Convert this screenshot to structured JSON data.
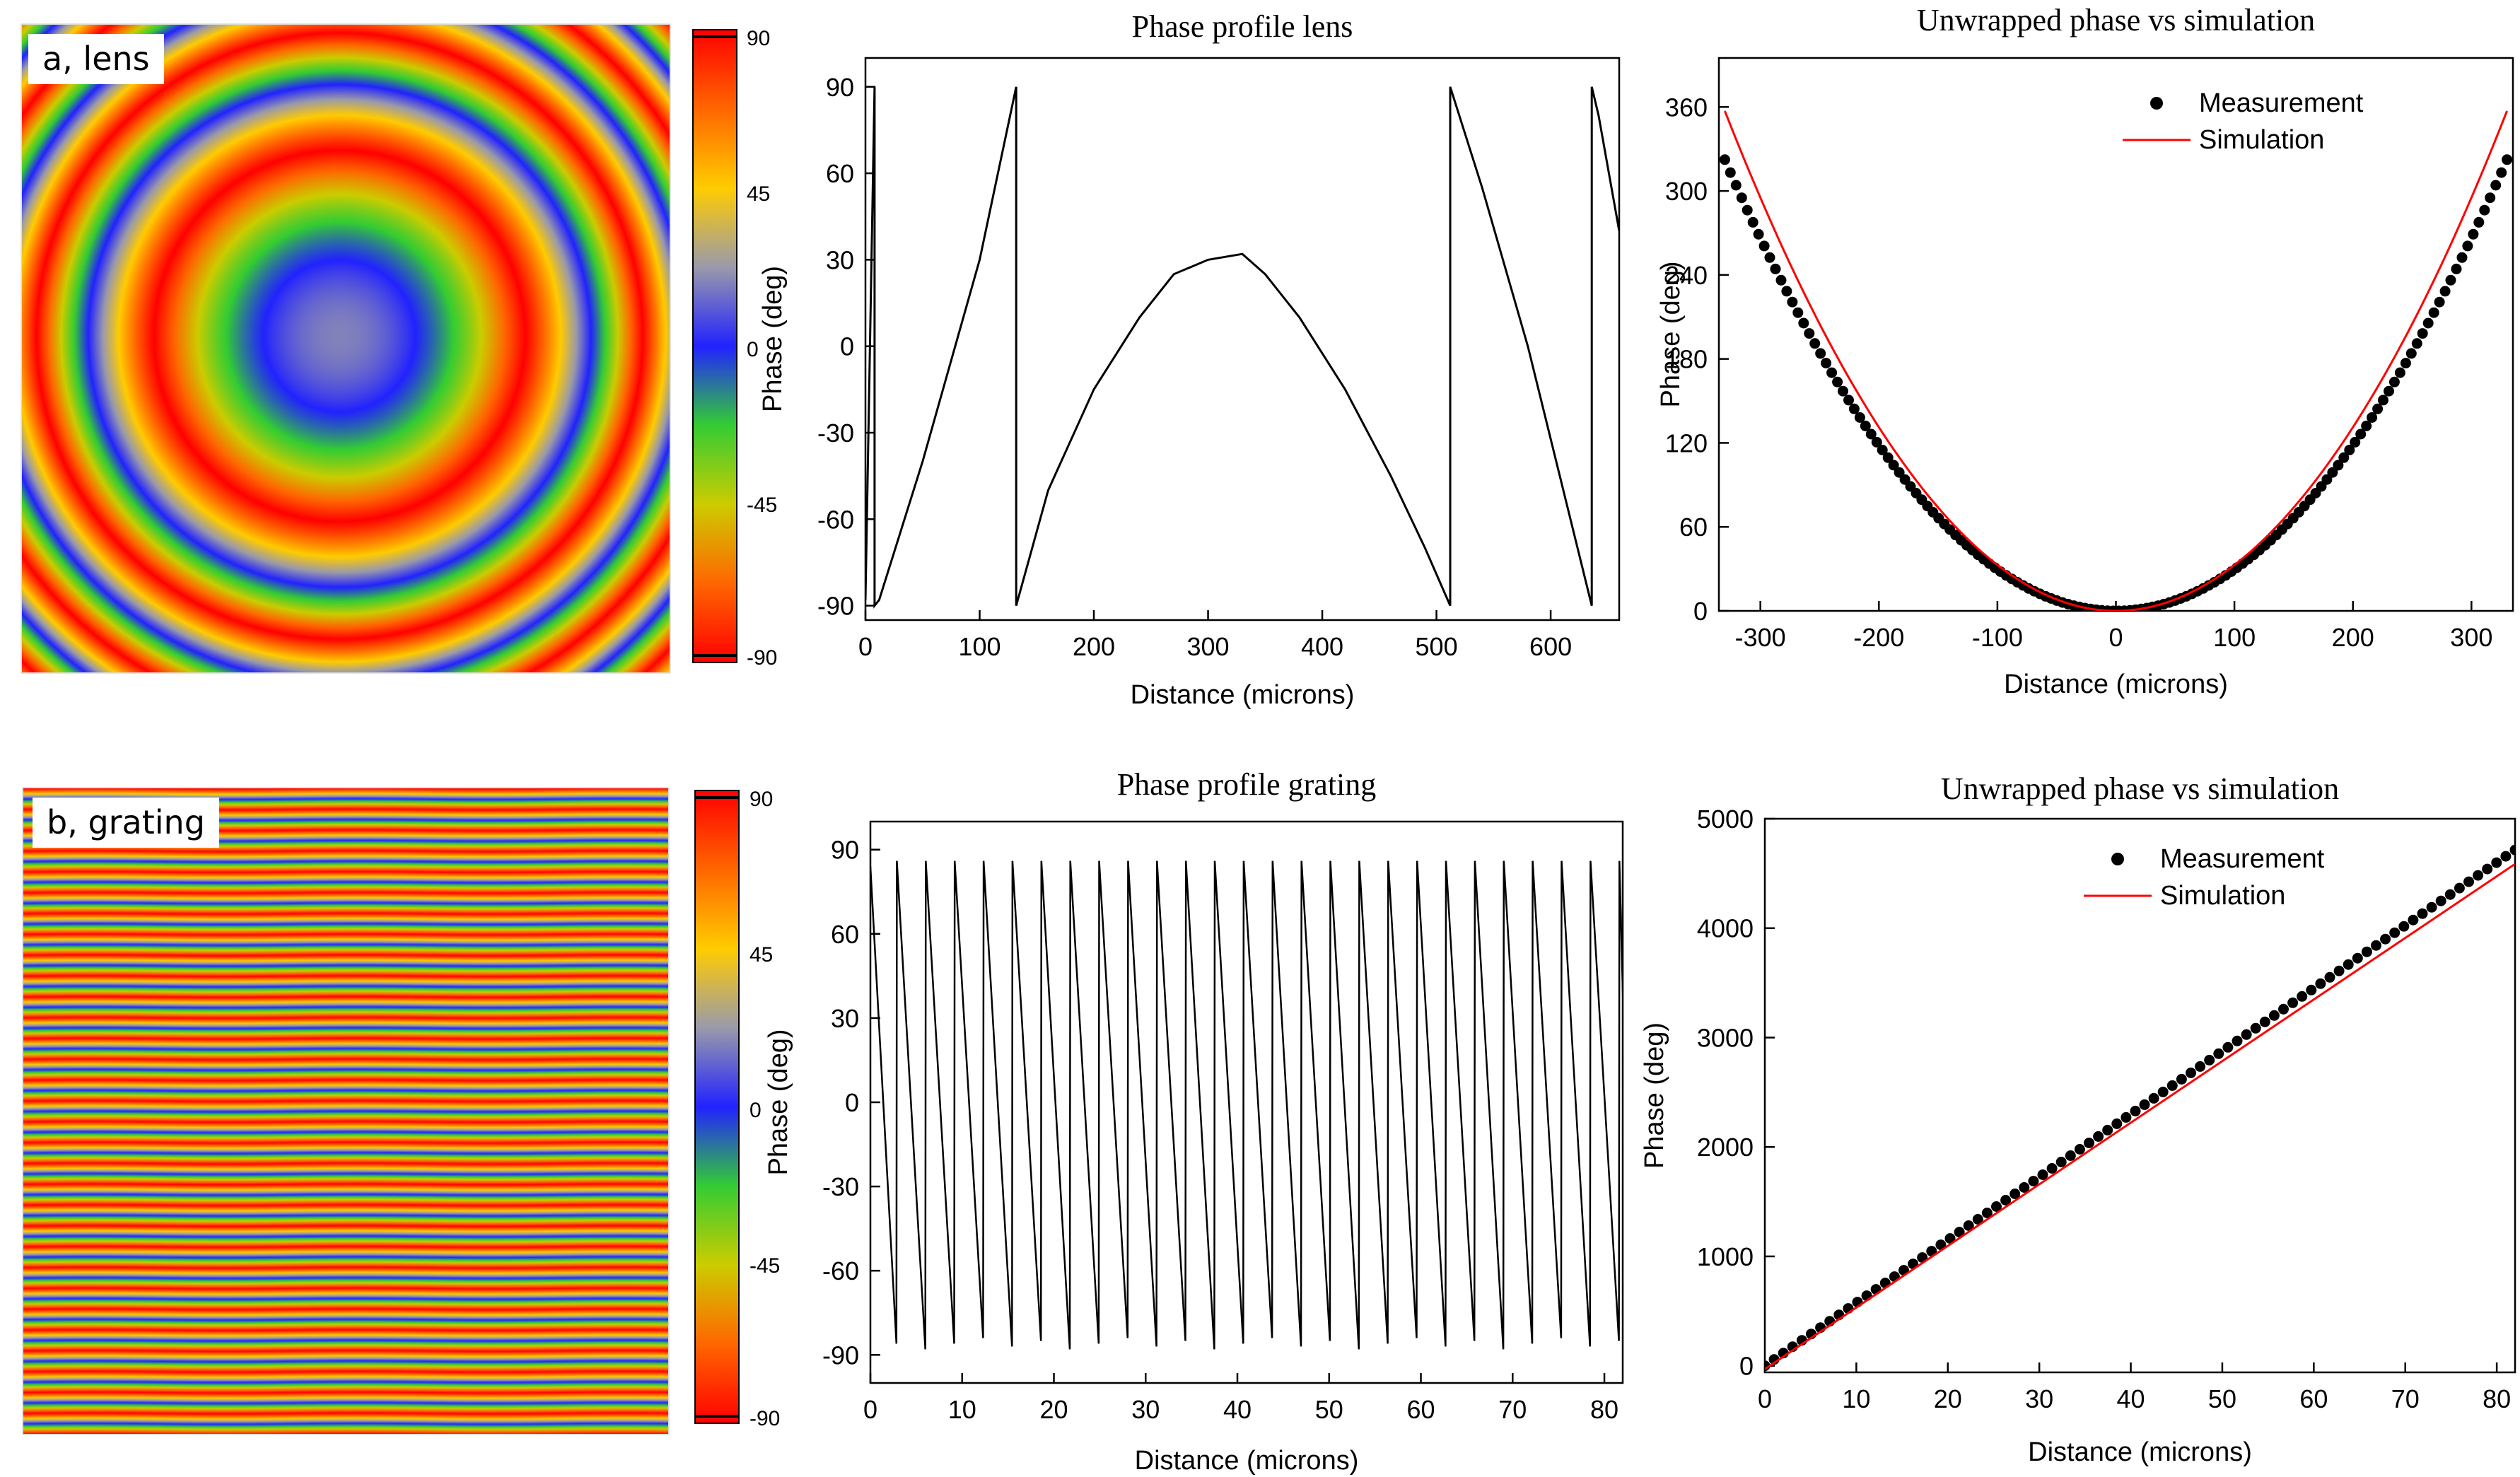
{
  "colors": {
    "phasemap_stops": [
      "#ff0000",
      "#ff6600",
      "#ffcc00",
      "#9a9aaa",
      "#2222ff",
      "#33cc33",
      "#cccc00",
      "#ff6600",
      "#ff0000"
    ],
    "trace": "#000000",
    "measurement": "#000000",
    "simulation": "#ff0000"
  },
  "panels": {
    "a": {
      "label": "a, lens",
      "colorbar": {
        "ticks": [
          "90",
          "45",
          "0",
          "-45",
          "-90"
        ]
      },
      "phasemap": {
        "type": "rings",
        "ring_period_fraction": 0.37
      }
    },
    "b": {
      "label": "b, grating",
      "colorbar": {
        "ticks": [
          "90",
          "45",
          "0",
          "-45",
          "-90"
        ]
      },
      "phasemap": {
        "type": "stripes",
        "stripe_count": 31
      }
    }
  },
  "chart_data": [
    {
      "id": "lens-phase-profile",
      "type": "line",
      "title": "Phase profile lens",
      "xlabel": "Distance (microns)",
      "ylabel": "Phase (deg)",
      "xlim": [
        0,
        660
      ],
      "ylim": [
        -95,
        100
      ],
      "xticks": [
        0,
        100,
        200,
        300,
        400,
        500,
        600
      ],
      "yticks": [
        -90,
        -60,
        -30,
        0,
        30,
        60,
        90
      ],
      "series": [
        {
          "name": "Phase",
          "x": [
            0,
            8,
            8,
            12,
            50,
            100,
            132,
            132,
            160,
            200,
            240,
            270,
            300,
            330,
            350,
            380,
            420,
            460,
            490,
            512,
            512,
            540,
            580,
            636,
            636,
            642,
            660
          ],
          "y": [
            -88,
            90,
            -90,
            -88,
            -40,
            30,
            90,
            -90,
            -50,
            -15,
            10,
            25,
            30,
            32,
            25,
            10,
            -15,
            -45,
            -70,
            -90,
            90,
            55,
            0,
            -90,
            90,
            80,
            40
          ]
        }
      ]
    },
    {
      "id": "lens-unwrapped",
      "type": "scatter",
      "title": "Unwrapped phase vs simulation",
      "xlabel": "Distance (microns)",
      "ylabel": "Phase (deg)",
      "xlim": [
        -335,
        335
      ],
      "ylim": [
        0,
        395
      ],
      "xticks": [
        -300,
        -200,
        -100,
        0,
        100,
        200,
        300
      ],
      "yticks": [
        0,
        60,
        120,
        180,
        240,
        300,
        360
      ],
      "legend": "top-right",
      "series": [
        {
          "name": "Measurement",
          "kind": "scatter",
          "x_range": [
            -330,
            330
          ],
          "points": 140,
          "a": 0.00296,
          "x0": 0,
          "y0": 0
        },
        {
          "name": "Simulation",
          "kind": "line",
          "x_range": [
            -330,
            330
          ],
          "points": 120,
          "a": 0.00328,
          "x0": 0,
          "y0": 0
        }
      ]
    },
    {
      "id": "grating-phase-profile",
      "type": "line",
      "title": "Phase profile grating",
      "xlabel": "Distance (microns)",
      "ylabel": "Phase (deg)",
      "xlim": [
        0,
        82
      ],
      "ylim": [
        -100,
        100
      ],
      "xticks": [
        0,
        10,
        20,
        30,
        40,
        50,
        60,
        70,
        80
      ],
      "yticks": [
        -90,
        -60,
        -30,
        0,
        30,
        60,
        90
      ],
      "series": [
        {
          "name": "Phase",
          "sawtooth_period": 3.15,
          "start_phase": 84,
          "peak": 86,
          "trough": -86
        }
      ]
    },
    {
      "id": "grating-unwrapped",
      "type": "scatter",
      "title": "Unwrapped phase vs simulation",
      "xlabel": "Distance (microns)",
      "ylabel": "Phase (deg)",
      "xlim": [
        0,
        82
      ],
      "ylim": [
        -60,
        5000
      ],
      "xticks": [
        0,
        10,
        20,
        30,
        40,
        50,
        60,
        70,
        80
      ],
      "yticks": [
        0,
        1000,
        2000,
        3000,
        4000,
        5000
      ],
      "legend": "top-right",
      "series": [
        {
          "name": "Measurement",
          "kind": "scatter",
          "x_range": [
            0,
            82
          ],
          "points": 82,
          "slope": 57.5,
          "intercept": 0
        },
        {
          "name": "Simulation",
          "kind": "line",
          "x_range": [
            0,
            82
          ],
          "points": 2,
          "slope": 56.3,
          "intercept": -30
        }
      ]
    }
  ]
}
